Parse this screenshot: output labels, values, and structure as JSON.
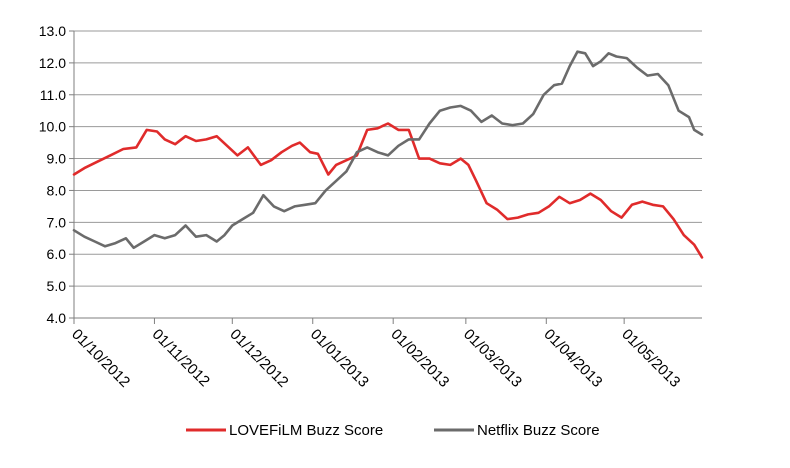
{
  "chart_data": {
    "type": "line",
    "title": "",
    "xlabel": "",
    "ylabel": "",
    "ylim": [
      4.0,
      13.0
    ],
    "yticks": [
      "4.0",
      "5.0",
      "6.0",
      "7.0",
      "8.0",
      "9.0",
      "10.0",
      "11.0",
      "12.0",
      "13.0"
    ],
    "x_tick_labels": [
      "01/10/2012",
      "01/11/2012",
      "01/12/2012",
      "01/01/2013",
      "01/02/2013",
      "01/03/2013",
      "01/04/2013",
      "01/05/2013"
    ],
    "x_range": [
      "2012-10-01",
      "2013-05-31"
    ],
    "grid": "horizontal",
    "legend_position": "bottom",
    "series": [
      {
        "name": "LOVEFiLM Buzz Score",
        "color": "#e02b2b",
        "points": [
          [
            "2012-10-01",
            8.5
          ],
          [
            "2012-10-05",
            8.7
          ],
          [
            "2012-10-10",
            8.9
          ],
          [
            "2012-10-15",
            9.1
          ],
          [
            "2012-10-20",
            9.3
          ],
          [
            "2012-10-25",
            9.35
          ],
          [
            "2012-10-29",
            9.9
          ],
          [
            "2012-11-02",
            9.85
          ],
          [
            "2012-11-05",
            9.6
          ],
          [
            "2012-11-09",
            9.45
          ],
          [
            "2012-11-13",
            9.7
          ],
          [
            "2012-11-17",
            9.55
          ],
          [
            "2012-11-21",
            9.6
          ],
          [
            "2012-11-25",
            9.7
          ],
          [
            "2012-11-29",
            9.4
          ],
          [
            "2012-12-03",
            9.1
          ],
          [
            "2012-12-07",
            9.35
          ],
          [
            "2012-12-12",
            8.8
          ],
          [
            "2012-12-16",
            8.95
          ],
          [
            "2012-12-20",
            9.2
          ],
          [
            "2012-12-24",
            9.4
          ],
          [
            "2012-12-27",
            9.5
          ],
          [
            "2012-12-31",
            9.2
          ],
          [
            "2013-01-03",
            9.15
          ],
          [
            "2013-01-07",
            8.5
          ],
          [
            "2013-01-10",
            8.8
          ],
          [
            "2013-01-14",
            8.95
          ],
          [
            "2013-01-18",
            9.1
          ],
          [
            "2013-01-22",
            9.9
          ],
          [
            "2013-01-26",
            9.95
          ],
          [
            "2013-01-30",
            10.1
          ],
          [
            "2013-02-03",
            9.9
          ],
          [
            "2013-02-07",
            9.9
          ],
          [
            "2013-02-11",
            9.0
          ],
          [
            "2013-02-15",
            9.0
          ],
          [
            "2013-02-19",
            8.85
          ],
          [
            "2013-02-23",
            8.8
          ],
          [
            "2013-02-27",
            9.0
          ],
          [
            "2013-03-02",
            8.8
          ],
          [
            "2013-03-05",
            8.3
          ],
          [
            "2013-03-09",
            7.6
          ],
          [
            "2013-03-13",
            7.4
          ],
          [
            "2013-03-17",
            7.1
          ],
          [
            "2013-03-21",
            7.15
          ],
          [
            "2013-03-25",
            7.25
          ],
          [
            "2013-03-29",
            7.3
          ],
          [
            "2013-04-02",
            7.5
          ],
          [
            "2013-04-06",
            7.8
          ],
          [
            "2013-04-10",
            7.6
          ],
          [
            "2013-04-14",
            7.7
          ],
          [
            "2013-04-18",
            7.9
          ],
          [
            "2013-04-22",
            7.7
          ],
          [
            "2013-04-26",
            7.35
          ],
          [
            "2013-04-30",
            7.15
          ],
          [
            "2013-05-04",
            7.55
          ],
          [
            "2013-05-08",
            7.65
          ],
          [
            "2013-05-12",
            7.55
          ],
          [
            "2013-05-16",
            7.5
          ],
          [
            "2013-05-20",
            7.1
          ],
          [
            "2013-05-24",
            6.6
          ],
          [
            "2013-05-28",
            6.3
          ],
          [
            "2013-05-31",
            5.9
          ]
        ]
      },
      {
        "name": "Netflix Buzz Score",
        "color": "#6b6b6b",
        "points": [
          [
            "2012-10-01",
            6.75
          ],
          [
            "2012-10-05",
            6.55
          ],
          [
            "2012-10-09",
            6.4
          ],
          [
            "2012-10-13",
            6.25
          ],
          [
            "2012-10-17",
            6.35
          ],
          [
            "2012-10-21",
            6.5
          ],
          [
            "2012-10-24",
            6.2
          ],
          [
            "2012-10-28",
            6.4
          ],
          [
            "2012-11-01",
            6.6
          ],
          [
            "2012-11-05",
            6.5
          ],
          [
            "2012-11-09",
            6.6
          ],
          [
            "2012-11-13",
            6.9
          ],
          [
            "2012-11-17",
            6.55
          ],
          [
            "2012-11-21",
            6.6
          ],
          [
            "2012-11-25",
            6.4
          ],
          [
            "2012-11-28",
            6.6
          ],
          [
            "2012-12-01",
            6.9
          ],
          [
            "2012-12-05",
            7.1
          ],
          [
            "2012-12-09",
            7.3
          ],
          [
            "2012-12-13",
            7.85
          ],
          [
            "2012-12-17",
            7.5
          ],
          [
            "2012-12-21",
            7.35
          ],
          [
            "2012-12-25",
            7.5
          ],
          [
            "2012-12-29",
            7.55
          ],
          [
            "2013-01-02",
            7.6
          ],
          [
            "2013-01-06",
            8.0
          ],
          [
            "2013-01-10",
            8.3
          ],
          [
            "2013-01-14",
            8.6
          ],
          [
            "2013-01-18",
            9.2
          ],
          [
            "2013-01-22",
            9.35
          ],
          [
            "2013-01-26",
            9.2
          ],
          [
            "2013-01-30",
            9.1
          ],
          [
            "2013-02-03",
            9.4
          ],
          [
            "2013-02-07",
            9.6
          ],
          [
            "2013-02-11",
            9.6
          ],
          [
            "2013-02-15",
            10.1
          ],
          [
            "2013-02-19",
            10.5
          ],
          [
            "2013-02-23",
            10.6
          ],
          [
            "2013-02-27",
            10.65
          ],
          [
            "2013-03-03",
            10.5
          ],
          [
            "2013-03-07",
            10.15
          ],
          [
            "2013-03-11",
            10.35
          ],
          [
            "2013-03-15",
            10.1
          ],
          [
            "2013-03-19",
            10.05
          ],
          [
            "2013-03-23",
            10.1
          ],
          [
            "2013-03-27",
            10.4
          ],
          [
            "2013-03-31",
            11.0
          ],
          [
            "2013-04-04",
            11.3
          ],
          [
            "2013-04-07",
            11.35
          ],
          [
            "2013-04-10",
            11.9
          ],
          [
            "2013-04-13",
            12.35
          ],
          [
            "2013-04-16",
            12.3
          ],
          [
            "2013-04-19",
            11.9
          ],
          [
            "2013-04-22",
            12.05
          ],
          [
            "2013-04-25",
            12.3
          ],
          [
            "2013-04-28",
            12.2
          ],
          [
            "2013-05-02",
            12.15
          ],
          [
            "2013-05-06",
            11.85
          ],
          [
            "2013-05-10",
            11.6
          ],
          [
            "2013-05-14",
            11.65
          ],
          [
            "2013-05-18",
            11.3
          ],
          [
            "2013-05-22",
            10.5
          ],
          [
            "2013-05-26",
            10.3
          ],
          [
            "2013-05-28",
            9.9
          ],
          [
            "2013-05-31",
            9.75
          ]
        ]
      }
    ]
  }
}
